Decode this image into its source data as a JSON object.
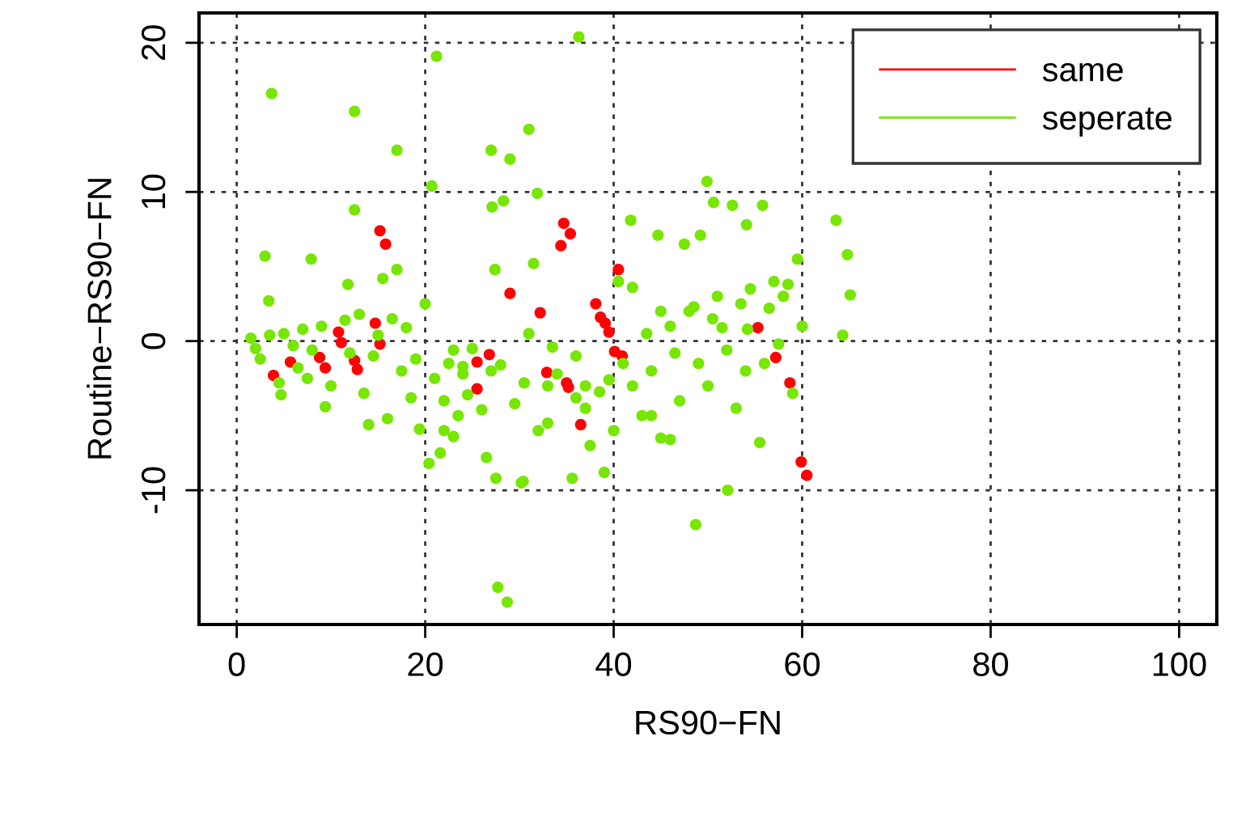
{
  "chart_data": {
    "type": "scatter",
    "xlabel": "RS90−FN",
    "ylabel": "Routine−RS90−FN",
    "xlim": [
      -4,
      104
    ],
    "ylim": [
      -19,
      22
    ],
    "xticks": [
      0,
      20,
      40,
      60,
      80,
      100
    ],
    "yticks": [
      -10,
      0,
      10,
      20
    ],
    "grid": true,
    "legend": "top right",
    "marker": "circle",
    "series": [
      {
        "name": "same",
        "color": "#ff0000",
        "x": [
          3.9,
          5.7,
          8.8,
          9.4,
          10.8,
          11.1,
          12.5,
          12.8,
          14.7,
          15.2,
          15.2,
          15.8,
          25.5,
          25.5,
          26.8,
          29.0,
          32.2,
          32.9,
          34.7,
          35.4,
          34.4,
          35.0,
          35.2,
          36.5,
          40.5,
          38.1,
          38.6,
          39.1,
          39.5,
          40.1,
          40.9,
          55.3,
          57.2,
          58.7,
          59.9,
          60.5
        ],
        "values": [
          -2.3,
          -1.4,
          -1.1,
          -1.8,
          0.6,
          -0.1,
          -1.3,
          -1.9,
          1.2,
          -0.2,
          7.4,
          6.5,
          -1.4,
          -3.2,
          -0.9,
          3.2,
          1.9,
          -2.1,
          7.9,
          7.2,
          6.4,
          -2.8,
          -3.1,
          -5.6,
          4.8,
          2.5,
          1.6,
          1.2,
          0.6,
          -0.7,
          -1.0,
          0.9,
          -1.1,
          -2.8,
          -8.1,
          -9.0
        ]
      },
      {
        "name": "seperate",
        "color": "#77e600",
        "x": [
          3.7,
          12.5,
          17.0,
          21.2,
          20.7,
          12.5,
          3.0,
          7.9,
          11.8,
          15.5,
          3.4,
          27.0,
          29.0,
          31.0,
          36.3,
          27.1,
          28.3,
          31.9,
          27.4,
          49.9,
          50.6,
          52.6,
          55.8,
          63.6,
          64.8,
          65.1,
          64.3,
          41.8,
          44.7,
          49.2,
          54.1,
          30.4,
          52.1,
          48.7,
          27.7,
          28.7,
          20.4,
          21.6,
          26.5,
          30.2,
          35.6,
          39.0,
          4.7,
          9.4,
          14.0,
          16.0,
          19.4,
          27.5,
          1.5,
          2.0,
          2.5,
          3.5,
          4.5,
          5.0,
          6.0,
          6.5,
          7.0,
          7.5,
          8.0,
          9.0,
          10.0,
          11.5,
          12.0,
          13.0,
          13.5,
          14.5,
          16.5,
          17.5,
          18.0,
          18.5,
          19.0,
          20.0,
          21.0,
          22.0,
          22.5,
          23.0,
          23.5,
          24.0,
          24.5,
          25.0,
          26.0,
          27.0,
          28.0,
          29.5,
          30.5,
          31.0,
          32.0,
          33.0,
          33.5,
          34.0,
          36.0,
          37.0,
          37.5,
          38.5,
          41.0,
          42.0,
          43.0,
          43.5,
          44.0,
          45.0,
          46.0,
          46.5,
          47.0,
          48.0,
          49.0,
          50.0,
          50.5,
          51.0,
          52.0,
          53.0,
          53.5,
          54.0,
          54.5,
          54.2,
          56.0,
          56.5,
          57.0,
          57.5,
          58.0,
          59.0,
          59.5,
          60.0,
          17.0,
          22.0,
          24.0,
          33.0,
          37.0,
          42.0,
          45.0,
          47.5,
          51.5,
          55.5,
          58.5,
          23.0,
          31.5,
          36.0,
          44.0,
          48.5,
          40.0,
          15.0,
          40.5,
          39.5,
          46.0
        ],
        "values": [
          16.6,
          15.4,
          12.8,
          19.1,
          10.4,
          8.8,
          5.7,
          5.5,
          3.8,
          4.2,
          2.7,
          12.8,
          12.2,
          14.2,
          20.4,
          9.0,
          9.4,
          9.9,
          4.8,
          10.7,
          9.3,
          9.1,
          9.1,
          8.1,
          5.8,
          3.1,
          0.4,
          8.1,
          7.1,
          7.1,
          7.8,
          -9.4,
          -10.0,
          -12.3,
          -16.5,
          -17.5,
          -8.2,
          -7.5,
          -7.8,
          -9.5,
          -9.2,
          -8.8,
          -3.6,
          -4.4,
          -5.6,
          -5.2,
          -5.9,
          -9.2,
          0.2,
          -0.5,
          -1.2,
          0.4,
          -2.8,
          0.5,
          -0.3,
          -1.8,
          0.8,
          -2.5,
          -0.6,
          1.0,
          -3.0,
          1.4,
          -0.8,
          1.8,
          -3.5,
          -1.0,
          1.5,
          -2.0,
          0.9,
          -3.8,
          -1.2,
          2.5,
          -2.5,
          -4.0,
          -1.5,
          -0.6,
          -5.0,
          -2.2,
          -3.6,
          -0.5,
          -4.6,
          -2.0,
          -1.6,
          -4.2,
          -2.8,
          0.5,
          -6.0,
          -3.0,
          -0.4,
          -2.2,
          -1.0,
          -4.5,
          -7.0,
          -3.4,
          -1.5,
          -3.0,
          -5.0,
          0.5,
          -2.0,
          -6.5,
          1.0,
          -0.8,
          -4.0,
          2.0,
          -1.5,
          -3.0,
          1.5,
          3.0,
          -0.6,
          -4.5,
          2.5,
          -2.0,
          3.5,
          0.8,
          -1.5,
          2.2,
          4.0,
          -0.2,
          3.0,
          -3.5,
          5.5,
          1.0,
          4.8,
          -6.0,
          -1.7,
          -5.5,
          -3.0,
          3.6,
          2.0,
          6.5,
          0.9,
          -6.8,
          3.8,
          -6.4,
          5.2,
          -3.8,
          -5.0,
          2.3,
          -6.0,
          0.4,
          4.0,
          -2.6,
          -6.6
        ]
      }
    ]
  }
}
